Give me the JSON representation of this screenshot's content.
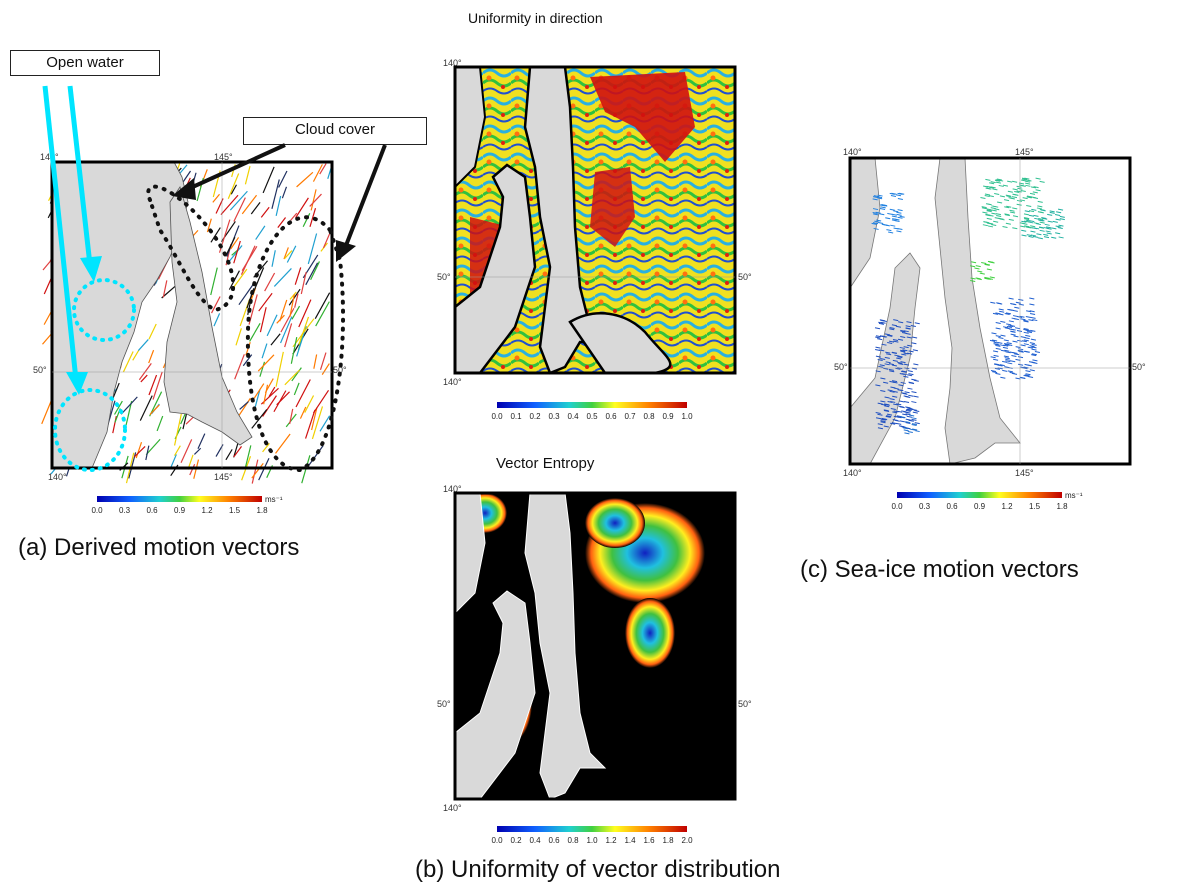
{
  "panel_a": {
    "caption": "(a) Derived motion vectors",
    "open_water_label": "Open water",
    "cloud_cover_label": "Cloud cover",
    "lon_ticks": [
      "140°",
      "145°"
    ],
    "lat_ticks": [
      "50°",
      "50°"
    ],
    "colorbar": {
      "ticks": [
        "0.0",
        "0.3",
        "0.6",
        "0.9",
        "1.2",
        "1.5",
        "1.8"
      ],
      "unit": "ms⁻¹"
    }
  },
  "panel_b": {
    "caption": "(b) Uniformity of vector distribution",
    "top_title": "Uniformity in direction",
    "bottom_title": "Vector Entropy",
    "top_ticks": {
      "lon": "140°",
      "lat_left": "50°",
      "lat_right": "50°",
      "lon_bottom": "140°"
    },
    "top_colorbar": [
      "0.0",
      "0.1",
      "0.2",
      "0.3",
      "0.4",
      "0.5",
      "0.6",
      "0.7",
      "0.8",
      "0.9",
      "1.0"
    ],
    "bottom_ticks": {
      "lon": "140°",
      "lat_left": "50°",
      "lat_right": "50°",
      "lon_bottom": "140°"
    },
    "bottom_colorbar": [
      "0.0",
      "0.2",
      "0.4",
      "0.6",
      "0.8",
      "1.0",
      "1.2",
      "1.4",
      "1.6",
      "1.8",
      "2.0"
    ]
  },
  "panel_c": {
    "caption": "(c) Sea-ice motion vectors",
    "lon_ticks": [
      "140°",
      "145°"
    ],
    "lat_ticks": [
      "50°",
      "50°"
    ],
    "colorbar": {
      "ticks": [
        "0.0",
        "0.3",
        "0.6",
        "0.9",
        "1.2",
        "1.5",
        "1.8"
      ],
      "unit": "ms⁻¹"
    }
  },
  "colors": {
    "land": "#d9d9d9",
    "arrow_cyan": "#00e5ff",
    "dotted_black": "#111111",
    "entropy_bg": "#000000"
  }
}
